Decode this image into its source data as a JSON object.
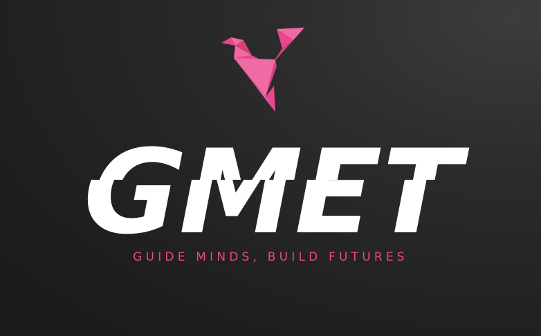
{
  "brand": {
    "name": "GMET",
    "tagline": "GUIDE MINDS, BUILD FUTURES"
  },
  "colors": {
    "accent": "#e8468e",
    "accent_light": "#f06aa4",
    "accent_dark": "#c9336f",
    "wordmark": "#ffffff",
    "background": "#222222"
  },
  "icons": {
    "logo": "origami-bird-icon"
  }
}
